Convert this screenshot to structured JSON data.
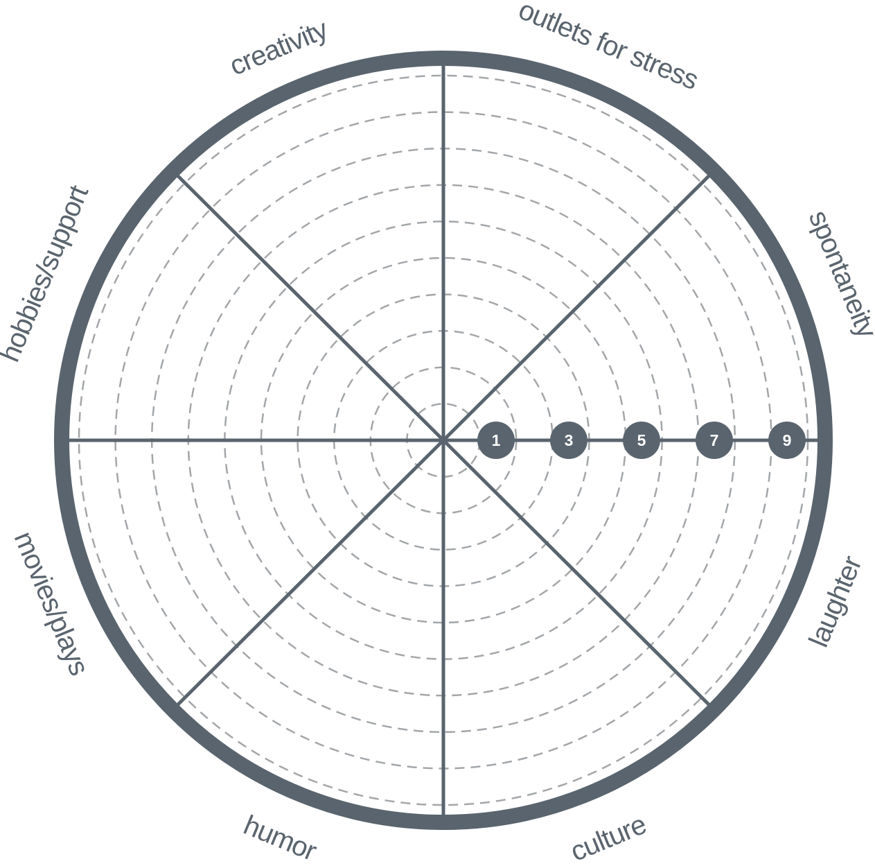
{
  "wheel": {
    "segments": [
      {
        "label": "outlets for stress"
      },
      {
        "label": "spontaneity"
      },
      {
        "label": "laughter"
      },
      {
        "label": "culture"
      },
      {
        "label": "humor"
      },
      {
        "label": "movies/plays"
      },
      {
        "label": "hobbies/support"
      },
      {
        "label": "creativity"
      }
    ],
    "scale_markers": [
      "1",
      "3",
      "5",
      "7",
      "9"
    ],
    "ring_count": 10
  },
  "colors": {
    "stroke": "#5a646e",
    "dashed_ring": "#a3a6a9",
    "marker_text": "#ffffff",
    "label_text": "#5a646e",
    "background": "#ffffff"
  }
}
